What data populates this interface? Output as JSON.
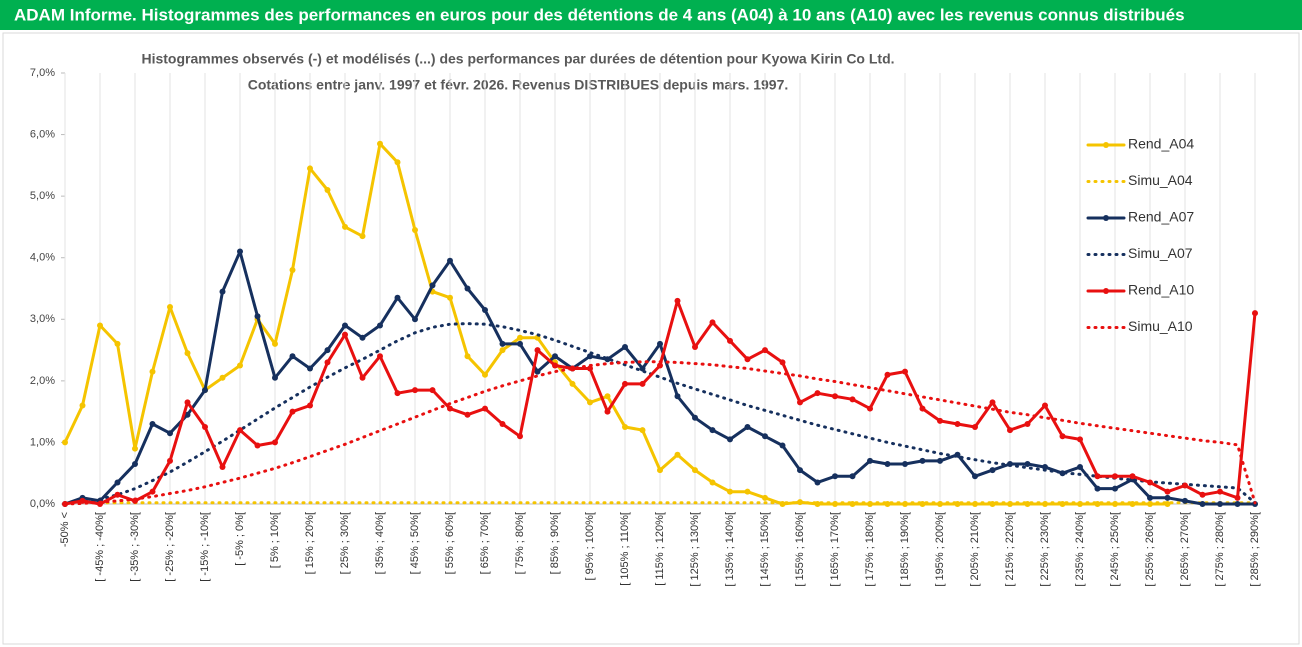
{
  "chart_data": {
    "type": "line",
    "banner": "ADAM Informe. Histogrammes des performances en euros pour des détentions de 4 ans (A04) à 10 ans (A10) avec les revenus connus distribués",
    "title": "Histogrammes observés (-) et modélisés (...) des performances par durées de détention pour Kyowa Kirin Co Ltd.",
    "subtitle": "Cotations entre janv. 1997 et févr. 2026. Revenus DISTRIBUES depuis mars. 1997.",
    "categories": [
      "-50% <",
      null,
      "[ -45% ; -40%[",
      null,
      "[ -35% ; -30%[",
      null,
      "[ -25% ; -20%[",
      null,
      "[ -15% ; -10%[",
      null,
      "[ -5% ; 0%[",
      null,
      "[ 5% ; 10%[",
      null,
      "[ 15% ; 20%[",
      null,
      "[ 25% ; 30%[",
      null,
      "[ 35% ; 40%[",
      null,
      "[ 45% ; 50%[",
      null,
      "[ 55% ; 60%[",
      null,
      "[ 65% ; 70%[",
      null,
      "[ 75% ; 80%[",
      null,
      "[ 85% ; 90%[",
      null,
      "[ 95% ; 100%[",
      null,
      "[ 105% ; 110%[",
      null,
      "[ 115% ; 120%[",
      null,
      "[ 125% ; 130%[",
      null,
      "[ 135% ; 140%[",
      null,
      "[ 145% ; 150%[",
      null,
      "[ 155% ; 160%[",
      null,
      "[ 165% ; 170%[",
      null,
      "[ 175% ; 180%[",
      null,
      "[ 185% ; 190%[",
      null,
      "[ 195% ; 200%[",
      null,
      "[ 205% ; 210%[",
      null,
      "[ 215% ; 220%[",
      null,
      "[ 225% ; 230%[",
      null,
      "[ 235% ; 240%[",
      null,
      "[ 245% ; 250%[",
      null,
      "[ 255% ; 260%[",
      null,
      "[ 265% ; 270%[",
      null,
      "[ 275% ; 280%[",
      null,
      "[ 285% ; 290%["
    ],
    "ylim": [
      0,
      7
    ],
    "yticks": [
      {
        "value": 0,
        "label": "0,0%"
      },
      {
        "value": 1,
        "label": "1,0%"
      },
      {
        "value": 2,
        "label": "2,0%"
      },
      {
        "value": 3,
        "label": "3,0%"
      },
      {
        "value": 4,
        "label": "4,0%"
      },
      {
        "value": 5,
        "label": "5,0%"
      },
      {
        "value": 6,
        "label": "6,0%"
      },
      {
        "value": 7,
        "label": "7,0%"
      }
    ],
    "grid": "x",
    "legend": "right",
    "series": [
      {
        "name": "Rend_A04",
        "color": "#f5c400",
        "style": "solid",
        "values": [
          1.0,
          1.6,
          2.9,
          2.6,
          0.9,
          2.15,
          3.2,
          2.45,
          1.85,
          2.05,
          2.25,
          3.0,
          2.6,
          3.8,
          5.45,
          5.1,
          4.5,
          4.35,
          5.85,
          5.55,
          4.45,
          3.45,
          3.35,
          2.4,
          2.1,
          2.5,
          2.7,
          2.7,
          2.3,
          1.95,
          1.65,
          1.75,
          1.25,
          1.2,
          0.55,
          0.8,
          0.55,
          0.35,
          0.2,
          0.2,
          0.1,
          0.0,
          0.03,
          0.0,
          0.0,
          0.0,
          0.0,
          0.0,
          0.0,
          0.0,
          0.0,
          0.0,
          0.0,
          0.0,
          0.0,
          0.0,
          0.0,
          0.0,
          0.0,
          0.0,
          0.0,
          0.0,
          0.0,
          0.0,
          null,
          null,
          null,
          null,
          null
        ]
      },
      {
        "name": "Simu_A04",
        "color": "#f5c400",
        "style": "dotted",
        "values": [
          0.02,
          0.02,
          0.02,
          0.02,
          0.02,
          0.02,
          0.02,
          0.02,
          0.02,
          0.02,
          0.02,
          0.02,
          0.02,
          0.02,
          0.02,
          0.02,
          0.02,
          0.02,
          0.02,
          0.02,
          0.02,
          0.02,
          0.02,
          0.02,
          0.02,
          0.02,
          0.02,
          0.02,
          0.02,
          0.02,
          0.02,
          0.02,
          0.02,
          0.02,
          0.02,
          0.02,
          0.02,
          0.02,
          0.02,
          0.02,
          0.02,
          0.02,
          0.02,
          0.02,
          0.02,
          0.02,
          0.02,
          0.02,
          0.02,
          0.02,
          0.02,
          0.02,
          0.02,
          0.02,
          0.02,
          0.02,
          0.02,
          0.02,
          0.02,
          0.02,
          0.02,
          0.02,
          0.02,
          0.02,
          0.02,
          0.02,
          0.02,
          0.02,
          0.02
        ]
      },
      {
        "name": "Rend_A07",
        "color": "#16305e",
        "style": "solid",
        "values": [
          0.0,
          0.1,
          0.05,
          0.35,
          0.65,
          1.3,
          1.15,
          1.45,
          1.85,
          3.45,
          4.1,
          3.05,
          2.05,
          2.4,
          2.2,
          2.5,
          2.9,
          2.7,
          2.9,
          3.35,
          3.0,
          3.55,
          3.95,
          3.5,
          3.15,
          2.6,
          2.6,
          2.15,
          2.4,
          2.2,
          2.4,
          2.35,
          2.55,
          2.2,
          2.6,
          1.75,
          1.4,
          1.2,
          1.05,
          1.25,
          1.1,
          0.95,
          0.55,
          0.35,
          0.45,
          0.45,
          0.7,
          0.65,
          0.65,
          0.7,
          0.7,
          0.8,
          0.45,
          0.55,
          0.65,
          0.65,
          0.6,
          0.5,
          0.6,
          0.25,
          0.25,
          0.4,
          0.1,
          0.1,
          0.05,
          0.0,
          0.0,
          0.0,
          0.0
        ]
      },
      {
        "name": "Simu_A07",
        "color": "#16305e",
        "style": "dotted",
        "values": [
          0.01,
          0.03,
          0.08,
          0.15,
          0.25,
          0.38,
          0.52,
          0.68,
          0.85,
          1.02,
          1.2,
          1.38,
          1.56,
          1.73,
          1.9,
          2.06,
          2.21,
          2.35,
          2.5,
          2.65,
          2.78,
          2.87,
          2.92,
          2.93,
          2.92,
          2.88,
          2.82,
          2.75,
          2.66,
          2.56,
          2.46,
          2.36,
          2.26,
          2.16,
          2.06,
          1.96,
          1.87,
          1.78,
          1.69,
          1.6,
          1.52,
          1.44,
          1.36,
          1.28,
          1.21,
          1.14,
          1.07,
          1.0,
          0.94,
          0.88,
          0.82,
          0.77,
          0.72,
          0.67,
          0.63,
          0.59,
          0.55,
          0.51,
          0.48,
          0.45,
          0.42,
          0.39,
          0.36,
          0.34,
          0.32,
          0.3,
          0.28,
          0.26,
          0.02
        ]
      },
      {
        "name": "Rend_A10",
        "color": "#e81010",
        "style": "solid",
        "values": [
          0.0,
          0.05,
          0.0,
          0.15,
          0.05,
          0.2,
          0.7,
          1.65,
          1.25,
          0.6,
          1.2,
          0.95,
          1.0,
          1.5,
          1.6,
          2.3,
          2.75,
          2.05,
          2.4,
          1.8,
          1.85,
          1.85,
          1.55,
          1.45,
          1.55,
          1.3,
          1.1,
          2.5,
          2.25,
          2.2,
          2.2,
          1.5,
          1.95,
          1.95,
          2.25,
          3.3,
          2.55,
          2.95,
          2.65,
          2.35,
          2.5,
          2.3,
          1.65,
          1.8,
          1.75,
          1.7,
          1.55,
          2.1,
          2.15,
          1.55,
          1.35,
          1.3,
          1.25,
          1.65,
          1.2,
          1.3,
          1.6,
          1.1,
          1.05,
          0.45,
          0.45,
          0.45,
          0.35,
          0.2,
          0.3,
          0.15,
          0.2,
          0.1,
          3.1
        ]
      },
      {
        "name": "Simu_A10",
        "color": "#e81010",
        "style": "dotted",
        "values": [
          0.0,
          0.01,
          0.03,
          0.05,
          0.08,
          0.12,
          0.17,
          0.22,
          0.28,
          0.35,
          0.42,
          0.5,
          0.58,
          0.67,
          0.77,
          0.87,
          0.97,
          1.08,
          1.19,
          1.3,
          1.41,
          1.52,
          1.63,
          1.73,
          1.83,
          1.92,
          2.0,
          2.08,
          2.15,
          2.2,
          2.25,
          2.28,
          2.3,
          2.31,
          2.31,
          2.3,
          2.28,
          2.26,
          2.23,
          2.2,
          2.16,
          2.12,
          2.08,
          2.03,
          1.99,
          1.94,
          1.89,
          1.84,
          1.79,
          1.74,
          1.69,
          1.64,
          1.59,
          1.54,
          1.49,
          1.45,
          1.4,
          1.36,
          1.31,
          1.27,
          1.23,
          1.19,
          1.15,
          1.11,
          1.07,
          1.03,
          1.0,
          0.96,
          0.02
        ]
      }
    ]
  }
}
